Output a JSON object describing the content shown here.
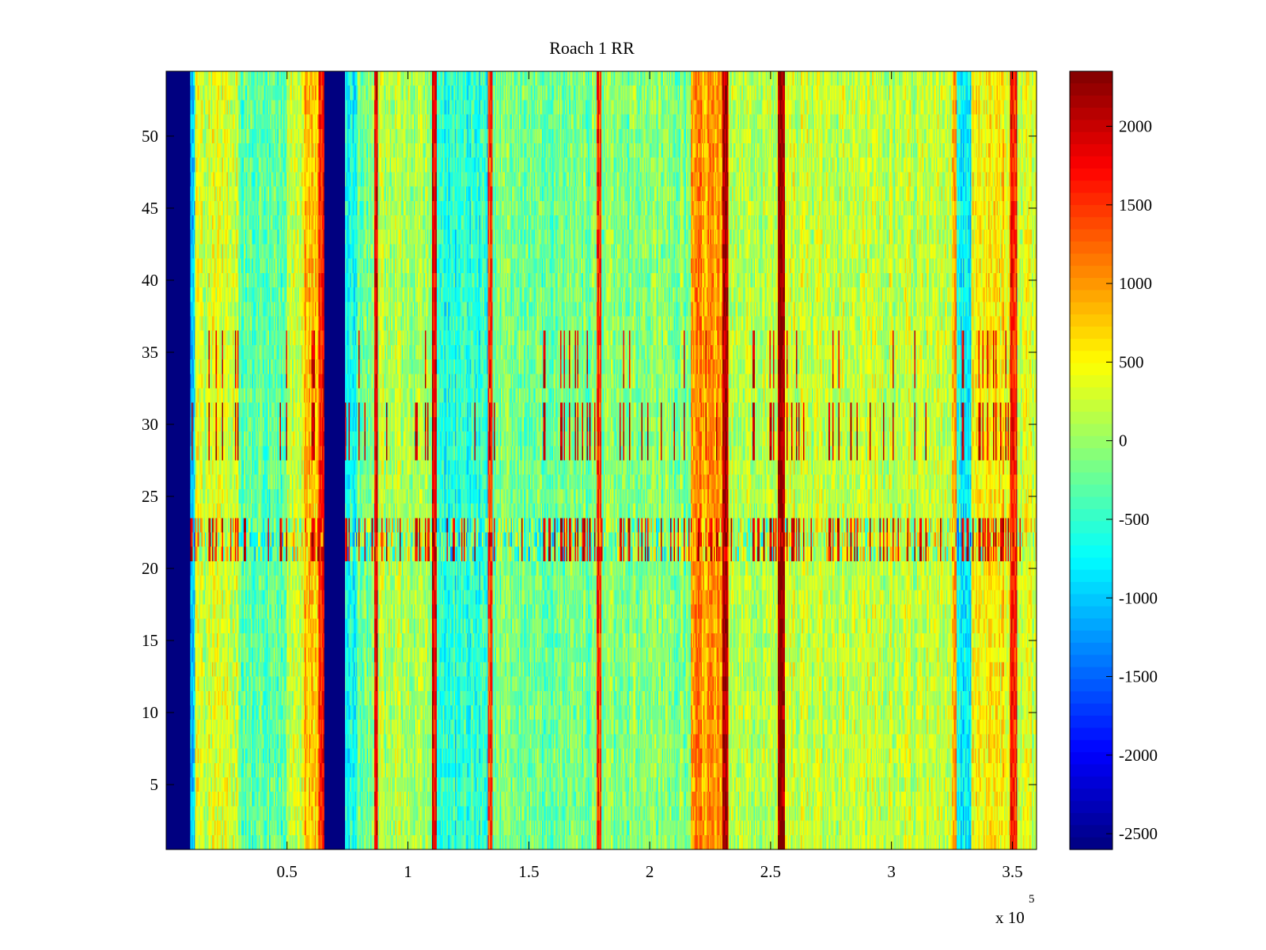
{
  "chart_data": {
    "type": "heatmap",
    "title": "Roach 1 RR",
    "xlabel": "",
    "ylabel": "",
    "x_multiplier_label": "x 10",
    "x_multiplier_exponent": "5",
    "xlim": [
      0,
      360000
    ],
    "ylim": [
      0.5,
      54.5
    ],
    "rows": 54,
    "columns": 720,
    "x_ticks": [
      {
        "value": 50000,
        "label": "0.5"
      },
      {
        "value": 100000,
        "label": "1"
      },
      {
        "value": 150000,
        "label": "1.5"
      },
      {
        "value": 200000,
        "label": "2"
      },
      {
        "value": 250000,
        "label": "2.5"
      },
      {
        "value": 300000,
        "label": "3"
      },
      {
        "value": 350000,
        "label": "3.5"
      }
    ],
    "y_ticks": [
      {
        "value": 5,
        "label": "5"
      },
      {
        "value": 10,
        "label": "10"
      },
      {
        "value": 15,
        "label": "15"
      },
      {
        "value": 20,
        "label": "20"
      },
      {
        "value": 25,
        "label": "25"
      },
      {
        "value": 30,
        "label": "30"
      },
      {
        "value": 35,
        "label": "35"
      },
      {
        "value": 40,
        "label": "40"
      },
      {
        "value": 45,
        "label": "45"
      },
      {
        "value": 50,
        "label": "50"
      }
    ],
    "colorbar": {
      "colormap": "jet",
      "clim": [
        -2600,
        2350
      ],
      "ticks": [
        {
          "value": 2000,
          "label": "2000"
        },
        {
          "value": 1500,
          "label": "1500"
        },
        {
          "value": 1000,
          "label": "1000"
        },
        {
          "value": 500,
          "label": "500"
        },
        {
          "value": 0,
          "label": "0"
        },
        {
          "value": -500,
          "label": "-500"
        },
        {
          "value": -1000,
          "label": "-1000"
        },
        {
          "value": -1500,
          "label": "-1500"
        },
        {
          "value": -2000,
          "label": "-2000"
        },
        {
          "value": -2500,
          "label": "-2500"
        }
      ]
    },
    "column_profile": [
      {
        "x_start": 0,
        "x_end": 10000,
        "value": -2600
      },
      {
        "x_start": 10000,
        "x_end": 12000,
        "value": -900
      },
      {
        "x_start": 12000,
        "x_end": 30000,
        "value": 300
      },
      {
        "x_start": 30000,
        "x_end": 50000,
        "value": -300
      },
      {
        "x_start": 50000,
        "x_end": 57000,
        "value": 250
      },
      {
        "x_start": 57000,
        "x_end": 63000,
        "value": 800
      },
      {
        "x_start": 63000,
        "x_end": 65500,
        "value": 1700
      },
      {
        "x_start": 65500,
        "x_end": 74000,
        "value": -2600
      },
      {
        "x_start": 74000,
        "x_end": 79000,
        "value": -600
      },
      {
        "x_start": 79000,
        "x_end": 86000,
        "value": -200
      },
      {
        "x_start": 86000,
        "x_end": 87500,
        "value": 1800
      },
      {
        "x_start": 87500,
        "x_end": 110000,
        "value": 100
      },
      {
        "x_start": 110000,
        "x_end": 112000,
        "value": 1900
      },
      {
        "x_start": 112000,
        "x_end": 133000,
        "value": -600
      },
      {
        "x_start": 133000,
        "x_end": 135000,
        "value": 1500
      },
      {
        "x_start": 135000,
        "x_end": 178000,
        "value": -200
      },
      {
        "x_start": 178000,
        "x_end": 180000,
        "value": 1500
      },
      {
        "x_start": 180000,
        "x_end": 217000,
        "value": -100
      },
      {
        "x_start": 217000,
        "x_end": 230000,
        "value": 1000
      },
      {
        "x_start": 230000,
        "x_end": 232500,
        "value": 2100
      },
      {
        "x_start": 232500,
        "x_end": 253000,
        "value": 150
      },
      {
        "x_start": 253000,
        "x_end": 256000,
        "value": 2200
      },
      {
        "x_start": 256000,
        "x_end": 325000,
        "value": 200
      },
      {
        "x_start": 325000,
        "x_end": 327000,
        "value": 900
      },
      {
        "x_start": 327000,
        "x_end": 333000,
        "value": -700
      },
      {
        "x_start": 333000,
        "x_end": 349000,
        "value": 500
      },
      {
        "x_start": 349000,
        "x_end": 352000,
        "value": 1500
      },
      {
        "x_start": 352000,
        "x_end": 360000,
        "value": 300
      }
    ],
    "row_bands": [
      {
        "y_start": 21,
        "y_end": 23,
        "note": "high-variance band with red spikes"
      },
      {
        "y_start": 28,
        "y_end": 31,
        "note": "sparse red vertical spikes"
      },
      {
        "y_start": 33,
        "y_end": 36,
        "note": "occasional red spikes"
      }
    ]
  }
}
